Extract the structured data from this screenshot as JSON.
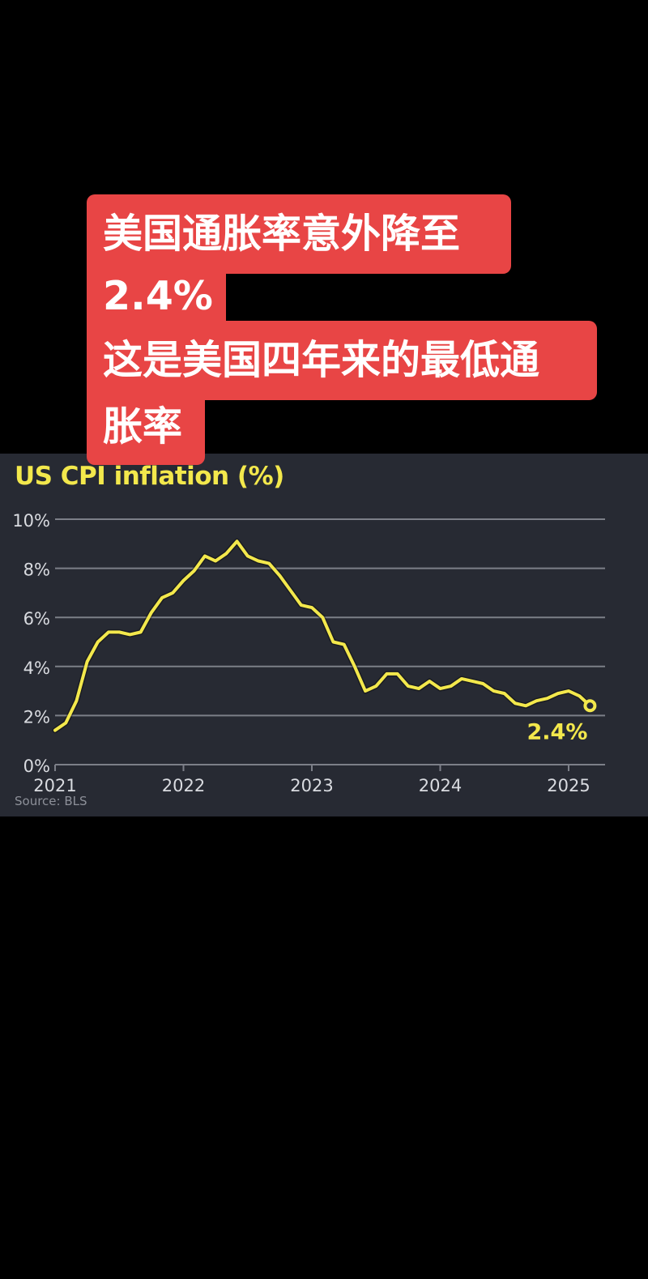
{
  "caption": {
    "lines": [
      "美国通胀率意外降至",
      "2.4%",
      "这是美国四年来的最低通",
      "胀率"
    ],
    "background_color": "#e84545",
    "text_color": "#ffffff"
  },
  "chart": {
    "title": "US CPI inflation (%)",
    "source": "Source: BLS",
    "end_label": "2.4%",
    "colors": {
      "panel_background": "#272a33",
      "line": "#f3e84c",
      "grid": "#7c7f88",
      "tick_text": "#d9dbe0"
    }
  },
  "chart_data": {
    "type": "line",
    "title": "US CPI inflation (%)",
    "xlabel": "",
    "ylabel": "",
    "ylim": [
      0,
      10
    ],
    "y_ticks": [
      "0%",
      "2%",
      "4%",
      "6%",
      "8%",
      "10%"
    ],
    "x_ticks": [
      "2021",
      "2022",
      "2023",
      "2024",
      "2025"
    ],
    "grid": true,
    "legend": null,
    "annotation": {
      "text": "2.4%",
      "point": "2025-03"
    },
    "source": "Source: BLS",
    "x": [
      "2021-01",
      "2021-02",
      "2021-03",
      "2021-04",
      "2021-05",
      "2021-06",
      "2021-07",
      "2021-08",
      "2021-09",
      "2021-10",
      "2021-11",
      "2021-12",
      "2022-01",
      "2022-02",
      "2022-03",
      "2022-04",
      "2022-05",
      "2022-06",
      "2022-07",
      "2022-08",
      "2022-09",
      "2022-10",
      "2022-11",
      "2022-12",
      "2023-01",
      "2023-02",
      "2023-03",
      "2023-04",
      "2023-05",
      "2023-06",
      "2023-07",
      "2023-08",
      "2023-09",
      "2023-10",
      "2023-11",
      "2023-12",
      "2024-01",
      "2024-02",
      "2024-03",
      "2024-04",
      "2024-05",
      "2024-06",
      "2024-07",
      "2024-08",
      "2024-09",
      "2024-10",
      "2024-11",
      "2024-12",
      "2025-01",
      "2025-02",
      "2025-03"
    ],
    "series": [
      {
        "name": "US CPI inflation",
        "values": [
          1.4,
          1.7,
          2.6,
          4.2,
          5.0,
          5.4,
          5.4,
          5.3,
          5.4,
          6.2,
          6.8,
          7.0,
          7.5,
          7.9,
          8.5,
          8.3,
          8.6,
          9.1,
          8.5,
          8.3,
          8.2,
          7.7,
          7.1,
          6.5,
          6.4,
          6.0,
          5.0,
          4.9,
          4.0,
          3.0,
          3.2,
          3.7,
          3.7,
          3.2,
          3.1,
          3.4,
          3.1,
          3.2,
          3.5,
          3.4,
          3.3,
          3.0,
          2.9,
          2.5,
          2.4,
          2.6,
          2.7,
          2.9,
          3.0,
          2.8,
          2.4
        ]
      }
    ]
  }
}
